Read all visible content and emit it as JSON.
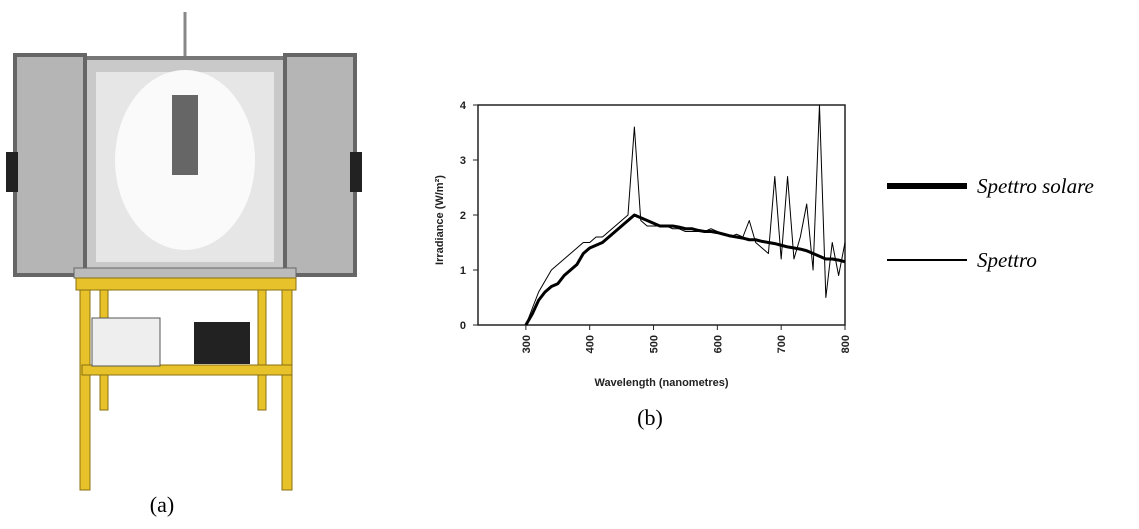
{
  "photo": {
    "caption": "(a)"
  },
  "chart_data": {
    "type": "line",
    "caption": "(b)",
    "xlabel": "Wavelength (nanometres)",
    "ylabel": "Irradiance (W/m²)",
    "xlim": [
      225,
      800
    ],
    "xticks": [
      300,
      400,
      500,
      600,
      700,
      800
    ],
    "ylim": [
      0,
      4
    ],
    "yticks": [
      0,
      1,
      2,
      3,
      4
    ],
    "x": [
      300,
      310,
      320,
      330,
      340,
      350,
      360,
      370,
      380,
      390,
      400,
      410,
      420,
      430,
      440,
      450,
      460,
      470,
      480,
      490,
      500,
      510,
      520,
      530,
      540,
      550,
      560,
      570,
      580,
      590,
      600,
      610,
      620,
      630,
      640,
      650,
      660,
      670,
      680,
      690,
      700,
      710,
      720,
      730,
      740,
      750,
      760,
      770,
      780,
      790,
      800
    ],
    "series": [
      {
        "name": "Spettro solare",
        "color": "#000000",
        "linewidth": 3,
        "values": [
          0,
          0.2,
          0.45,
          0.6,
          0.7,
          0.75,
          0.9,
          1.0,
          1.1,
          1.3,
          1.4,
          1.45,
          1.5,
          1.6,
          1.7,
          1.8,
          1.9,
          2.0,
          1.95,
          1.9,
          1.85,
          1.8,
          1.8,
          1.8,
          1.78,
          1.75,
          1.75,
          1.72,
          1.7,
          1.7,
          1.68,
          1.65,
          1.62,
          1.6,
          1.58,
          1.55,
          1.55,
          1.52,
          1.5,
          1.48,
          1.45,
          1.42,
          1.4,
          1.38,
          1.35,
          1.3,
          1.25,
          1.2,
          1.2,
          1.18,
          1.15
        ]
      },
      {
        "name": "Spettro",
        "color": "#000000",
        "linewidth": 1,
        "values": [
          0,
          0.3,
          0.6,
          0.8,
          1.0,
          1.1,
          1.2,
          1.3,
          1.4,
          1.5,
          1.5,
          1.6,
          1.6,
          1.7,
          1.8,
          1.9,
          2.0,
          3.6,
          1.9,
          1.8,
          1.8,
          1.8,
          1.8,
          1.75,
          1.75,
          1.7,
          1.7,
          1.7,
          1.7,
          1.75,
          1.7,
          1.65,
          1.6,
          1.65,
          1.6,
          1.9,
          1.5,
          1.4,
          1.3,
          2.7,
          1.2,
          2.7,
          1.2,
          1.6,
          2.2,
          1.0,
          4.0,
          0.5,
          1.5,
          0.9,
          1.5
        ]
      }
    ]
  }
}
